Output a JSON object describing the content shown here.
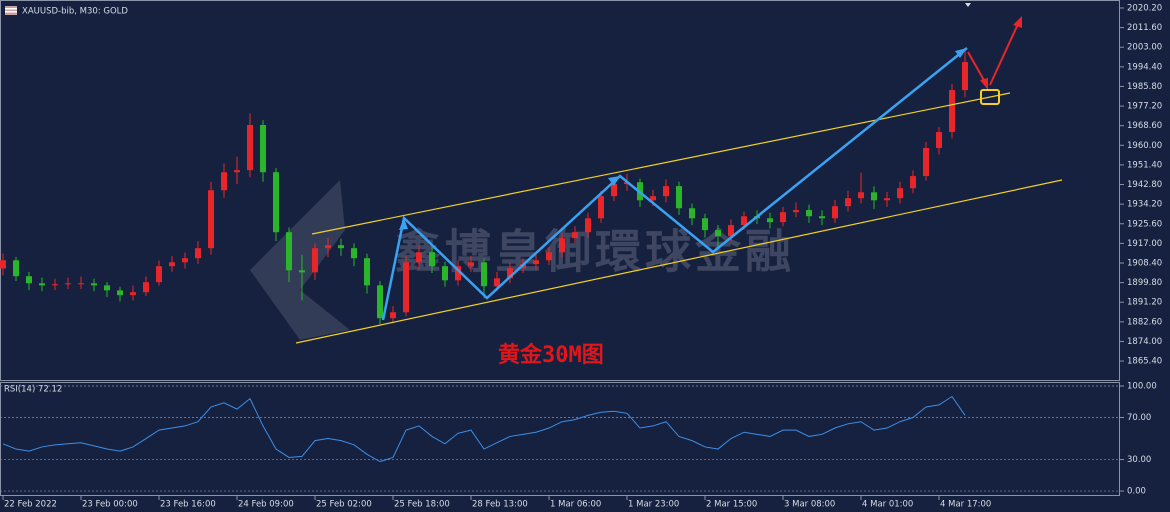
{
  "chart_data": {
    "type": "candlestick",
    "title": "XAUUSD-bib, M30:  GOLD",
    "watermark": "鑫博皇御環球金融",
    "annotation": "黄金30M图",
    "up_color": "#e8262a",
    "down_color": "#2bb52b",
    "categories": [
      "22 Feb 2022",
      null,
      null,
      null,
      null,
      null,
      "23 Feb 00:00",
      null,
      null,
      null,
      null,
      null,
      "23 Feb 16:00",
      null,
      null,
      null,
      null,
      null,
      "24 Feb 09:00",
      null,
      null,
      null,
      null,
      null,
      "25 Feb 02:00",
      null,
      null,
      null,
      null,
      null,
      "25 Feb 18:00",
      null,
      null,
      null,
      null,
      null,
      "28 Feb 13:00",
      null,
      null,
      null,
      null,
      null,
      "1 Mar 06:00",
      null,
      null,
      null,
      null,
      null,
      "1 Mar 23:00",
      null,
      null,
      null,
      null,
      null,
      "2 Mar 15:00",
      null,
      null,
      null,
      null,
      null,
      "3 Mar 08:00",
      null,
      null,
      null,
      null,
      null,
      "4 Mar 01:00",
      null,
      null,
      null,
      null,
      null,
      "4 Mar 17:00",
      null,
      null
    ],
    "open": [
      1906.0,
      1909.6,
      1902.6,
      1899.5,
      1898.6,
      1899.1,
      1899.5,
      1899.5,
      1898.6,
      1896.4,
      1894.3,
      1895.6,
      1900.0,
      1907.0,
      1908.7,
      1910.5,
      1914.9,
      1940.3,
      1948.2,
      1949.1,
      1968.9,
      1948.2,
      1921.9,
      1905.2,
      1904.3,
      1914.9,
      1916.2,
      1914.9,
      1910.5,
      1898.6,
      1884.2,
      1886.8,
      1908.7,
      1913.1,
      1907.0,
      1900.8,
      1907.0,
      1908.7,
      1898.2,
      1901.7,
      1906.1,
      1907.9,
      1909.6,
      1913.1,
      1919.3,
      1921.9,
      1928.0,
      1937.7,
      1943.0,
      1943.8,
      1935.9,
      1937.7,
      1942.1,
      1932.4,
      1928.0,
      1922.8,
      1920.1,
      1925.0,
      1928.9,
      1928.0,
      1926.3,
      1930.7,
      1931.6,
      1928.9,
      1928.0,
      1933.3,
      1936.8,
      1939.4,
      1935.9,
      1936.8,
      1941.2,
      1946.5,
      1958.8,
      1965.8,
      1984.2
    ],
    "high": [
      1912.5,
      1911.0,
      1904.5,
      1902.0,
      1901.5,
      1902.0,
      1902.5,
      1901.5,
      1900.0,
      1898.0,
      1898.5,
      1902.5,
      1909.5,
      1911.5,
      1913.0,
      1918.0,
      1944.0,
      1952.0,
      1955.0,
      1974.0,
      1971.0,
      1950.0,
      1924.0,
      1912.0,
      1917.0,
      1919.5,
      1919.0,
      1917.0,
      1912.5,
      1900.5,
      1889.5,
      1911.5,
      1916.0,
      1915.5,
      1909.0,
      1909.5,
      1911.5,
      1910.5,
      1904.5,
      1908.5,
      1910.5,
      1912.0,
      1915.5,
      1921.5,
      1924.5,
      1930.5,
      1940.0,
      1946.0,
      1947.5,
      1945.5,
      1940.5,
      1945.0,
      1944.0,
      1934.5,
      1930.0,
      1925.0,
      1927.5,
      1931.0,
      1931.5,
      1930.5,
      1933.0,
      1935.0,
      1934.0,
      1931.5,
      1936.0,
      1940.0,
      1948.0,
      1942.0,
      1939.5,
      1944.0,
      1949.0,
      1961.5,
      1968.0,
      1987.0,
      2002.5
    ],
    "low": [
      1903.0,
      1900.5,
      1896.5,
      1896.0,
      1896.5,
      1897.0,
      1897.0,
      1896.0,
      1893.5,
      1891.5,
      1892.0,
      1894.0,
      1898.5,
      1904.5,
      1906.0,
      1908.0,
      1912.0,
      1937.0,
      1943.0,
      1946.0,
      1944.0,
      1918.0,
      1900.0,
      1892.0,
      1901.0,
      1911.0,
      1911.5,
      1907.0,
      1895.0,
      1881.5,
      1882.0,
      1885.0,
      1905.5,
      1904.0,
      1898.0,
      1898.5,
      1904.5,
      1893.0,
      1896.0,
      1899.5,
      1904.0,
      1905.5,
      1907.5,
      1911.0,
      1917.0,
      1919.5,
      1926.0,
      1935.5,
      1940.0,
      1933.0,
      1933.5,
      1935.0,
      1929.5,
      1925.0,
      1919.5,
      1914.5,
      1918.0,
      1923.0,
      1925.5,
      1923.5,
      1924.5,
      1928.5,
      1926.0,
      1925.0,
      1926.0,
      1931.0,
      1934.5,
      1932.0,
      1933.0,
      1934.5,
      1939.0,
      1944.5,
      1956.0,
      1963.0,
      1981.0
    ],
    "close": [
      1909.6,
      1902.6,
      1899.5,
      1898.6,
      1899.1,
      1899.5,
      1899.5,
      1898.6,
      1896.4,
      1894.3,
      1895.6,
      1900.0,
      1907.0,
      1908.7,
      1910.5,
      1914.9,
      1940.3,
      1948.2,
      1949.1,
      1968.9,
      1948.2,
      1921.9,
      1905.2,
      1904.3,
      1914.9,
      1916.2,
      1914.9,
      1910.5,
      1898.6,
      1884.2,
      1886.8,
      1908.7,
      1913.1,
      1907.0,
      1900.8,
      1907.0,
      1908.7,
      1898.2,
      1901.7,
      1906.1,
      1907.9,
      1909.6,
      1913.1,
      1919.3,
      1921.9,
      1928.0,
      1937.7,
      1943.0,
      1943.8,
      1935.9,
      1937.7,
      1942.1,
      1932.4,
      1928.0,
      1922.8,
      1920.1,
      1925.0,
      1928.9,
      1928.0,
      1926.3,
      1930.7,
      1931.6,
      1928.9,
      1928.0,
      1933.3,
      1936.8,
      1939.4,
      1935.9,
      1936.8,
      1941.2,
      1946.5,
      1958.8,
      1965.8,
      1984.2,
      1996.5
    ],
    "ylim": [
      1857.1,
      2023.7
    ],
    "yticks": [
      {
        "value": 2020.2,
        "label": "2020.20"
      },
      {
        "value": 2011.6,
        "label": "2011.60"
      },
      {
        "value": 2003.0,
        "label": "2003.00"
      },
      {
        "value": 1994.4,
        "label": "1994.40"
      },
      {
        "value": 1985.8,
        "label": "1985.80"
      },
      {
        "value": 1977.2,
        "label": "1977.20"
      },
      {
        "value": 1968.6,
        "label": "1968.60"
      },
      {
        "value": 1960.0,
        "label": "1960.00"
      },
      {
        "value": 1951.4,
        "label": "1951.40"
      },
      {
        "value": 1942.8,
        "label": "1942.80"
      },
      {
        "value": 1934.2,
        "label": "1934.20"
      },
      {
        "value": 1925.6,
        "label": "1925.60"
      },
      {
        "value": 1917.0,
        "label": "1917.00"
      },
      {
        "value": 1908.4,
        "label": "1908.40"
      },
      {
        "value": 1899.8,
        "label": "1899.80"
      },
      {
        "value": 1891.2,
        "label": "1891.20"
      },
      {
        "value": 1882.6,
        "label": "1882.60"
      },
      {
        "value": 1874.0,
        "label": "1874.00"
      },
      {
        "value": 1865.4,
        "label": "1865.40"
      }
    ],
    "indicator": {
      "type": "line",
      "label": "RSI(14) 72.12",
      "color": "#3d8fe8",
      "values": [
        45,
        40,
        38,
        42,
        44,
        45,
        46,
        43,
        40,
        38,
        42,
        50,
        58,
        60,
        62,
        66,
        80,
        84,
        78,
        88,
        62,
        40,
        32,
        33,
        48,
        50,
        48,
        44,
        35,
        28,
        32,
        58,
        62,
        52,
        45,
        55,
        58,
        40,
        46,
        52,
        54,
        56,
        60,
        66,
        68,
        72,
        75,
        76,
        74,
        60,
        62,
        66,
        52,
        48,
        42,
        40,
        50,
        56,
        54,
        52,
        58,
        58,
        52,
        54,
        60,
        64,
        66,
        58,
        60,
        66,
        70,
        80,
        82,
        90,
        72.12
      ],
      "ylim": [
        -4.7,
        103.8
      ],
      "yticks": [
        {
          "value": 100,
          "label": "100.00"
        },
        {
          "value": 70,
          "label": "70.00"
        },
        {
          "value": 30,
          "label": "30.00"
        },
        {
          "value": 0,
          "label": "0.00"
        }
      ]
    }
  }
}
